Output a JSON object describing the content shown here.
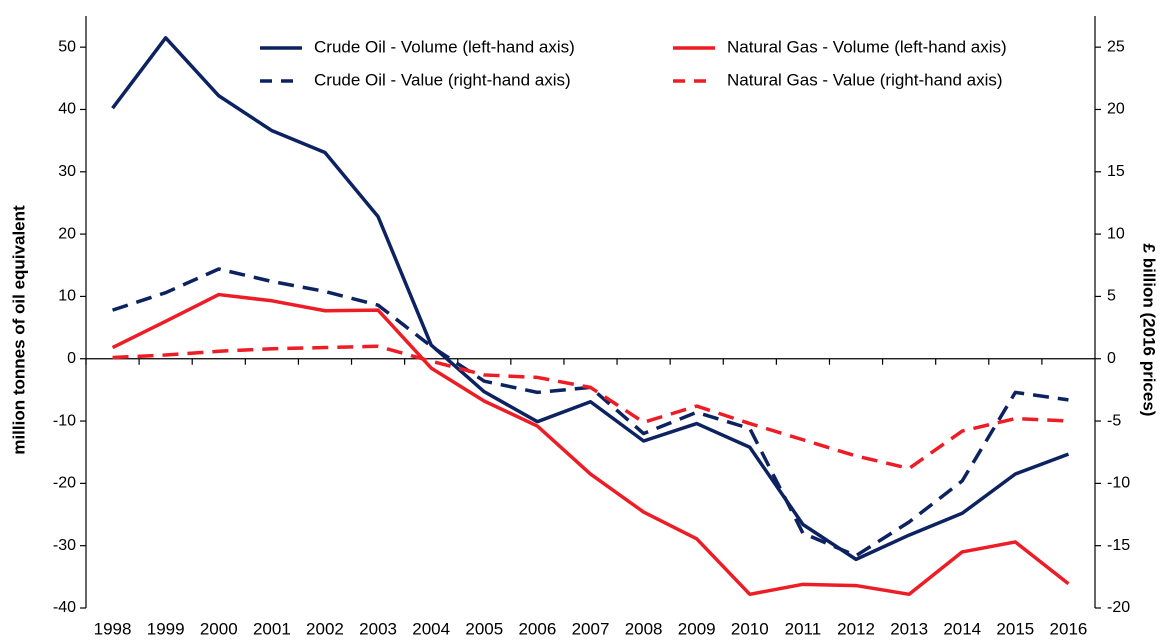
{
  "chart_data": {
    "type": "line",
    "categories": [
      "1998",
      "1999",
      "2000",
      "2001",
      "2002",
      "2003",
      "2004",
      "2005",
      "2006",
      "2007",
      "2008",
      "2009",
      "2010",
      "2011",
      "2012",
      "2013",
      "2014",
      "2015",
      "2016"
    ],
    "ylabel": "million tonnes of oil equivalent",
    "y2label": "£ billion (2016 prices)",
    "ylim": [
      -40,
      55
    ],
    "yticks": [
      -40,
      -30,
      -20,
      -10,
      0,
      10,
      20,
      30,
      40,
      50
    ],
    "y2lim": [
      -20,
      27.5
    ],
    "y2ticks": [
      -20,
      -15,
      -10,
      -5,
      0,
      5,
      10,
      15,
      20,
      25
    ],
    "series": [
      {
        "name": "Crude Oil - Volume (left-hand axis)",
        "color": "#0d2260",
        "style": "solid",
        "axis": "y",
        "values": [
          40.2,
          51.5,
          42.2,
          36.6,
          33.1,
          22.8,
          2.2,
          -5.3,
          -10.1,
          -6.9,
          -13.2,
          -10.4,
          -14.2,
          -26.6,
          -32.2,
          -28.3,
          -24.8,
          -18.5,
          -15.3
        ]
      },
      {
        "name": "Natural Gas - Volume (left-hand axis)",
        "color": "#ee1c25",
        "style": "solid",
        "axis": "y",
        "values": [
          1.8,
          6.0,
          10.3,
          9.3,
          7.7,
          7.8,
          -1.5,
          -6.8,
          -10.8,
          -18.5,
          -24.6,
          -28.9,
          -37.8,
          -36.2,
          -36.4,
          -37.8,
          -31.0,
          -29.4,
          -36.1
        ]
      },
      {
        "name": "Crude Oil - Value (right-hand axis)",
        "color": "#0d2260",
        "style": "dashed",
        "axis": "y2",
        "values": [
          3.9,
          5.3,
          7.2,
          6.2,
          5.4,
          4.3,
          1.0,
          -1.8,
          -2.7,
          -2.3,
          -6.0,
          -4.3,
          -5.6,
          -14.0,
          -15.8,
          -13.1,
          -9.8,
          -2.7,
          -3.3
        ]
      },
      {
        "name": "Natural Gas - Value (right-hand axis)",
        "color": "#ee1c25",
        "style": "dashed",
        "axis": "y2",
        "values": [
          0.1,
          0.3,
          0.6,
          0.8,
          0.9,
          1.0,
          -0.2,
          -1.3,
          -1.5,
          -2.3,
          -5.1,
          -3.8,
          -5.2,
          -6.5,
          -7.8,
          -8.8,
          -5.8,
          -4.8,
          -5.0
        ]
      }
    ]
  }
}
